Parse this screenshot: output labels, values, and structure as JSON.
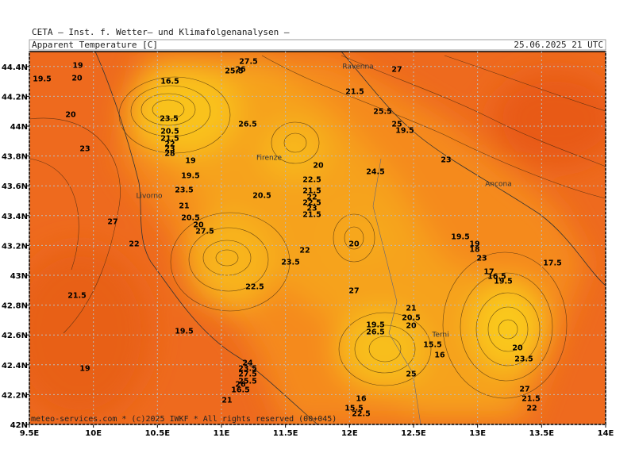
{
  "header": {
    "institute": "CETA — Inst. f. Wetter— und Klimafolgenanalysen —",
    "title": "Apparent Temperature [C]",
    "timestamp": "25.06.2025 21 UTC"
  },
  "map": {
    "lon_range": [
      9.5,
      14
    ],
    "lat_range": [
      42,
      44.5
    ],
    "lon_ticks": [
      {
        "value": 9.5,
        "label": "9.5E"
      },
      {
        "value": 10,
        "label": "10E"
      },
      {
        "value": 10.5,
        "label": "10.5E"
      },
      {
        "value": 11,
        "label": "11E"
      },
      {
        "value": 11.5,
        "label": "11.5E"
      },
      {
        "value": 12,
        "label": "12E"
      },
      {
        "value": 12.5,
        "label": "12.5E"
      },
      {
        "value": 13,
        "label": "13E"
      },
      {
        "value": 13.5,
        "label": "13.5E"
      },
      {
        "value": 14,
        "label": "14E"
      }
    ],
    "lat_ticks": [
      {
        "value": 42,
        "label": "42N"
      },
      {
        "value": 42.2,
        "label": "42.2N"
      },
      {
        "value": 42.4,
        "label": "42.4N"
      },
      {
        "value": 42.6,
        "label": "42.6N"
      },
      {
        "value": 42.8,
        "label": "42.8N"
      },
      {
        "value": 43,
        "label": "43N"
      },
      {
        "value": 43.2,
        "label": "43.2N"
      },
      {
        "value": 43.4,
        "label": "43.4N"
      },
      {
        "value": 43.6,
        "label": "43.6N"
      },
      {
        "value": 43.8,
        "label": "43.8N"
      },
      {
        "value": 44,
        "label": "44N"
      },
      {
        "value": 44.2,
        "label": "44.2N"
      },
      {
        "value": 44.4,
        "label": "44.4N"
      }
    ],
    "cities": [
      "Ravenna",
      "Firenze",
      "Livorno",
      "Ancona",
      "Terni"
    ],
    "contour_labels": [
      "19",
      "19.5",
      "20",
      "27.5",
      "25.5",
      "26",
      "27",
      "21.5",
      "16.5",
      "23.5",
      "20",
      "26.5",
      "25.5",
      "25",
      "19.5",
      "20.5",
      "21.5",
      "22",
      "23",
      "28",
      "23",
      "19",
      "20",
      "24.5",
      "23",
      "19.5",
      "22.5",
      "23.5",
      "20.5",
      "21.5",
      "22",
      "22.5",
      "23",
      "21.5",
      "21",
      "20.5",
      "20",
      "27.5",
      "27",
      "22",
      "20",
      "19.5",
      "19",
      "18",
      "23",
      "22",
      "23.5",
      "17.5",
      "17",
      "16.5",
      "19.5",
      "22.5",
      "27",
      "21.5",
      "21",
      "20.5",
      "20",
      "19.5",
      "26.5",
      "19.5",
      "15.5",
      "20",
      "16",
      "23.5",
      "24",
      "23.5",
      "27.5",
      "19",
      "25",
      "25.5",
      "26",
      "16.5",
      "27",
      "21",
      "16",
      "21.5",
      "15.5",
      "22",
      "22.5"
    ],
    "footer": "meteo-services.com * (c)2025 IWKF * All rights reserved (00+045)"
  }
}
